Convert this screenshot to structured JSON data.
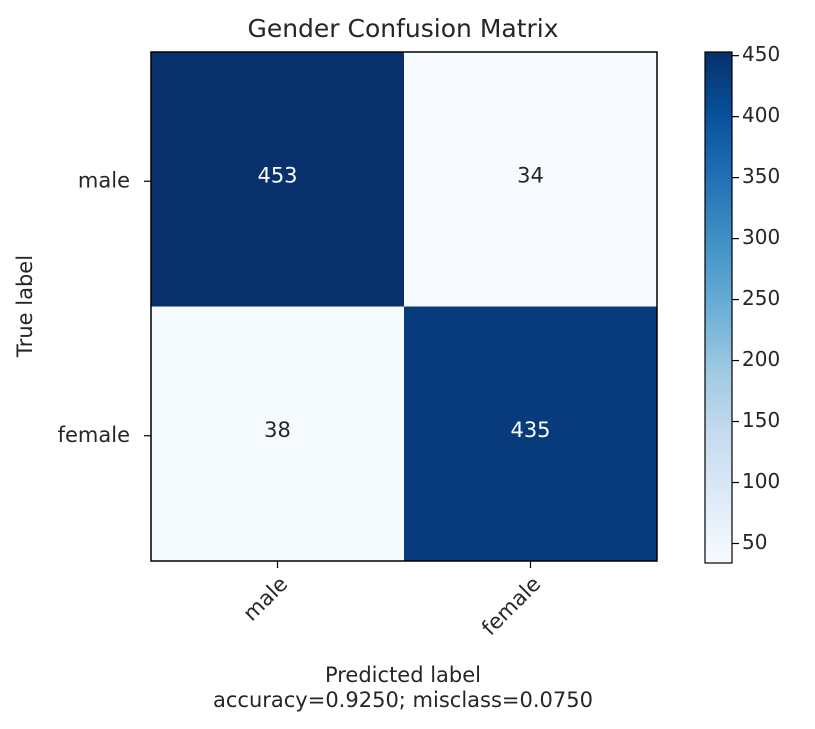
{
  "chart_data": {
    "type": "heatmap",
    "title": "Gender Confusion Matrix",
    "xlabel": "Predicted label",
    "ylabel": "True label",
    "subtitle": "accuracy=0.9250; misclass=0.0750",
    "x_categories": [
      "male",
      "female"
    ],
    "y_categories": [
      "male",
      "female"
    ],
    "values": [
      [
        453,
        34
      ],
      [
        38,
        435
      ]
    ],
    "colormap": "Blues",
    "colorbar": {
      "range": [
        34,
        453
      ],
      "ticks": [
        50,
        100,
        150,
        200,
        250,
        300,
        350,
        400,
        450
      ]
    },
    "colors": {
      "low": "#f7fbff",
      "high": "#08306b",
      "text_light": "#ffffff",
      "text_dark": "#262626"
    }
  }
}
